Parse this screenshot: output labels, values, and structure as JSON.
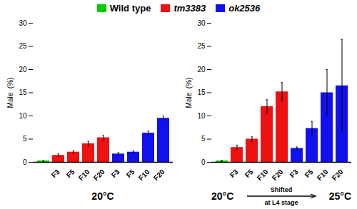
{
  "chart_data": [
    {
      "type": "bar",
      "xlabel": "20°C",
      "ylabel": "Male  (%)",
      "categories": [
        null,
        "F3",
        "F5",
        "F10",
        "F20",
        "F3",
        "F5",
        "F10",
        "F20"
      ],
      "series": [
        {
          "name": "Wild type",
          "color": "#00cc00",
          "values": [
            0.3,
            null,
            null,
            null,
            null,
            null,
            null,
            null,
            null
          ],
          "errors": [
            0.1,
            null,
            null,
            null,
            null,
            null,
            null,
            null,
            null
          ]
        },
        {
          "name": "tm3383",
          "color": "#ee1111",
          "values": [
            null,
            1.5,
            2.2,
            4.0,
            5.3,
            null,
            null,
            null,
            null
          ],
          "errors": [
            null,
            0.3,
            0.3,
            0.5,
            0.5,
            null,
            null,
            null,
            null
          ]
        },
        {
          "name": "ok2536",
          "color": "#1111ee",
          "values": [
            null,
            null,
            null,
            null,
            null,
            1.8,
            2.2,
            6.3,
            9.5
          ],
          "errors": [
            null,
            null,
            null,
            null,
            null,
            0.3,
            0.3,
            0.4,
            0.5
          ]
        }
      ],
      "ylim": [
        0,
        30
      ],
      "yticks": [
        0,
        5,
        10,
        15,
        20,
        25,
        30
      ],
      "legend": "upper center"
    },
    {
      "type": "bar",
      "ylabel": "Male  (%)",
      "annotations": [
        "20°C",
        "Shifted",
        "at L4 stage",
        "25°C"
      ],
      "categories": [
        null,
        "F3",
        "F5",
        "F10",
        "F20",
        "F3",
        "F5",
        "F10",
        "F20"
      ],
      "series": [
        {
          "name": "Wild type",
          "color": "#00cc00",
          "values": [
            0.3,
            null,
            null,
            null,
            null,
            null,
            null,
            null,
            null
          ],
          "errors": [
            0.1,
            null,
            null,
            null,
            null,
            null,
            null,
            null,
            null
          ]
        },
        {
          "name": "tm3383",
          "color": "#ee1111",
          "values": [
            null,
            3.2,
            5.0,
            12.0,
            15.2,
            null,
            null,
            null,
            null
          ],
          "errors": [
            null,
            0.5,
            0.5,
            1.5,
            2.0,
            null,
            null,
            null,
            null
          ]
        },
        {
          "name": "ok2536",
          "color": "#1111ee",
          "values": [
            null,
            null,
            null,
            null,
            null,
            3.0,
            7.3,
            15.0,
            16.5
          ],
          "errors": [
            null,
            null,
            null,
            null,
            null,
            0.3,
            1.5,
            5.0,
            10.0
          ]
        }
      ],
      "ylim": [
        0,
        30
      ],
      "yticks": [
        0,
        5,
        10,
        15,
        20,
        25,
        30
      ],
      "legend": "upper center"
    }
  ]
}
